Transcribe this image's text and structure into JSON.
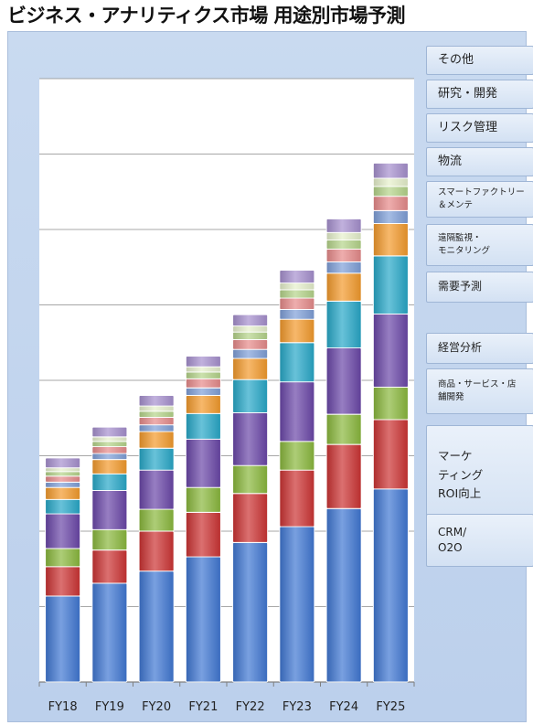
{
  "chart_data": {
    "type": "bar",
    "stacked": true,
    "title": "ビジネス・アナリティクス市場 用途別市場予測",
    "categories": [
      "FY18",
      "FY19",
      "FY20",
      "FY21",
      "FY22",
      "FY23",
      "FY24",
      "FY25"
    ],
    "ylim": [
      0,
      8
    ],
    "grid": true,
    "legend_position": "right",
    "series": [
      {
        "name": "CRM/\nO2O",
        "color": "#3f77d3",
        "values": [
          1.14,
          1.31,
          1.47,
          1.66,
          1.85,
          2.06,
          2.3,
          2.56
        ]
      },
      {
        "name": "マーケ\nティング\nROI向上",
        "color": "#cc3333",
        "values": [
          0.39,
          0.44,
          0.53,
          0.59,
          0.65,
          0.75,
          0.85,
          0.92
        ]
      },
      {
        "name": "商品・サービス・店\n舗開発",
        "color": "#8ab83c",
        "values": [
          0.24,
          0.27,
          0.29,
          0.33,
          0.37,
          0.38,
          0.4,
          0.43
        ]
      },
      {
        "name": "経営分析",
        "color": "#6a46a8",
        "values": [
          0.46,
          0.52,
          0.52,
          0.64,
          0.7,
          0.79,
          0.88,
          0.97
        ]
      },
      {
        "name": "需要予測",
        "color": "#27a8c8",
        "values": [
          0.19,
          0.22,
          0.29,
          0.34,
          0.44,
          0.52,
          0.62,
          0.77
        ]
      },
      {
        "name": "遠隔監視・\nモニタリング",
        "color": "#f39a2b",
        "values": [
          0.16,
          0.19,
          0.22,
          0.24,
          0.28,
          0.31,
          0.37,
          0.43
        ]
      },
      {
        "name": "スマートファクトリー\n＆メンテ",
        "color": "#7f9fd8",
        "values": [
          0.07,
          0.08,
          0.09,
          0.1,
          0.12,
          0.13,
          0.15,
          0.17
        ]
      },
      {
        "name": "物流",
        "color": "#e68a8a",
        "values": [
          0.08,
          0.09,
          0.1,
          0.12,
          0.13,
          0.15,
          0.17,
          0.19
        ]
      },
      {
        "name": "リスク管理",
        "color": "#b5d48a",
        "values": [
          0.06,
          0.07,
          0.08,
          0.09,
          0.1,
          0.11,
          0.12,
          0.13
        ]
      },
      {
        "name": "研究・開発",
        "color": "#e6f0cc",
        "values": [
          0.05,
          0.06,
          0.07,
          0.07,
          0.08,
          0.09,
          0.1,
          0.11
        ]
      },
      {
        "name": "その他",
        "color": "#a68fce",
        "values": [
          0.13,
          0.13,
          0.14,
          0.14,
          0.15,
          0.17,
          0.18,
          0.2
        ]
      }
    ]
  }
}
